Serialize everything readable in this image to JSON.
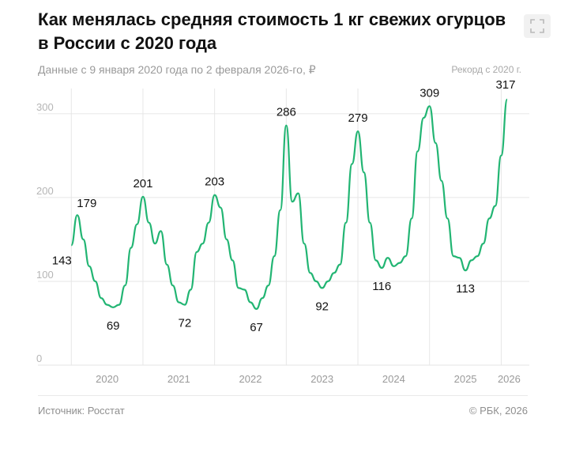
{
  "title": "Как менялась средняя стоимость 1 кг свежих огурцов в России с 2020 года",
  "subtitle": "Данные с 9 января 2020 года по 2 февраля 2026-го, ₽",
  "footer": {
    "source": "Источник: Росстат",
    "copyright": "© РБК, 2026"
  },
  "expand_icon": "expand-icon",
  "colors": {
    "line": "#22b573",
    "grid": "#e6e6e6",
    "text": "#111111",
    "muted": "#9a9a9a"
  },
  "chart_data": {
    "type": "line",
    "title": "Как менялась средняя стоимость 1 кг свежих огурцов в России с 2020 года",
    "subtitle": "Данные с 9 января 2020 года по 2 февраля 2026-го, ₽",
    "ylim": [
      0,
      330
    ],
    "yticks": [
      "0",
      "100",
      "200",
      "300"
    ],
    "xticks": [
      "2020",
      "2021",
      "2022",
      "2023",
      "2024",
      "2025",
      "2026"
    ],
    "grid": true,
    "series": [
      {
        "x": [
          "2020-01",
          "2020-02",
          "2020-03",
          "2020-04",
          "2020-05",
          "2020-06",
          "2020-07",
          "2020-08",
          "2020-09",
          "2020-10",
          "2020-11",
          "2020-12",
          "2021-01",
          "2021-02",
          "2021-03",
          "2021-04",
          "2021-05",
          "2021-06",
          "2021-07",
          "2021-08",
          "2021-09",
          "2021-10",
          "2021-11",
          "2021-12",
          "2022-01",
          "2022-02",
          "2022-03",
          "2022-04",
          "2022-05",
          "2022-06",
          "2022-07",
          "2022-08",
          "2022-09",
          "2022-10",
          "2022-11",
          "2022-12",
          "2023-01",
          "2023-02",
          "2023-03",
          "2023-04",
          "2023-05",
          "2023-06",
          "2023-07",
          "2023-08",
          "2023-09",
          "2023-10",
          "2023-11",
          "2023-12",
          "2024-01",
          "2024-02",
          "2024-03",
          "2024-04",
          "2024-05",
          "2024-06",
          "2024-07",
          "2024-08",
          "2024-09",
          "2024-10",
          "2024-11",
          "2024-12",
          "2025-01",
          "2025-02",
          "2025-03",
          "2025-04",
          "2025-05",
          "2025-06",
          "2025-07",
          "2025-08",
          "2025-09",
          "2025-10",
          "2025-11",
          "2025-12",
          "2026-01",
          "2026-02"
        ],
        "y": [
          143,
          179,
          150,
          118,
          100,
          80,
          72,
          69,
          72,
          95,
          140,
          168,
          201,
          170,
          145,
          160,
          120,
          95,
          75,
          72,
          90,
          135,
          145,
          170,
          203,
          188,
          150,
          125,
          92,
          90,
          75,
          67,
          80,
          95,
          130,
          185,
          286,
          195,
          205,
          145,
          110,
          100,
          92,
          100,
          110,
          120,
          170,
          240,
          279,
          230,
          170,
          125,
          116,
          128,
          118,
          122,
          130,
          175,
          255,
          295,
          309,
          265,
          220,
          175,
          130,
          128,
          113,
          125,
          130,
          145,
          175,
          190,
          250,
          317
        ]
      }
    ],
    "annotations": [
      {
        "label": "143",
        "x": "2020-01",
        "y": 143
      },
      {
        "label": "179",
        "x": "2020-02",
        "y": 179
      },
      {
        "label": "69",
        "x": "2020-08",
        "y": 69
      },
      {
        "label": "201",
        "x": "2021-01",
        "y": 201
      },
      {
        "label": "72",
        "x": "2021-08",
        "y": 72
      },
      {
        "label": "203",
        "x": "2022-01",
        "y": 203
      },
      {
        "label": "67",
        "x": "2022-08",
        "y": 67
      },
      {
        "label": "286",
        "x": "2023-01",
        "y": 286
      },
      {
        "label": "92",
        "x": "2023-07",
        "y": 92
      },
      {
        "label": "279",
        "x": "2024-01",
        "y": 279
      },
      {
        "label": "116",
        "x": "2024-05",
        "y": 116
      },
      {
        "label": "309",
        "x": "2025-01",
        "y": 309
      },
      {
        "label": "113",
        "x": "2025-07",
        "y": 113
      },
      {
        "label": "317",
        "x": "2026-02",
        "y": 317
      }
    ],
    "record_note": "Рекорд с 2020 г."
  }
}
